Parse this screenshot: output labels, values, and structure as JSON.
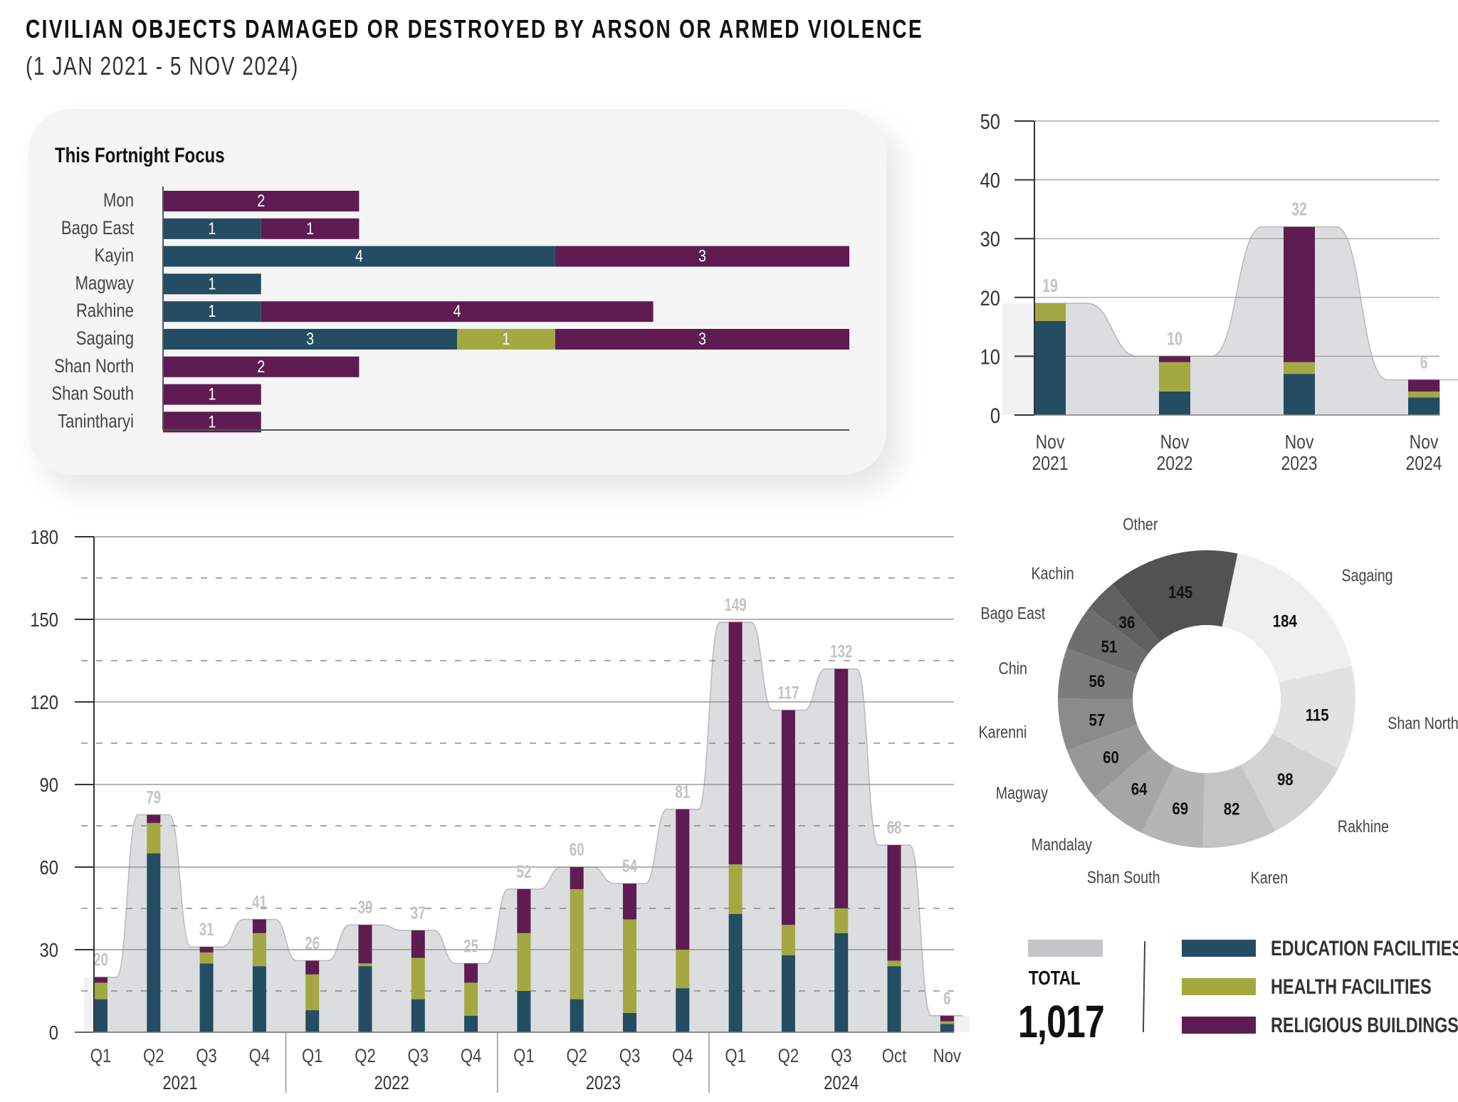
{
  "header": {
    "title": "CIVILIAN OBJECTS DAMAGED OR DESTROYED BY ARSON OR ARMED VIOLENCE",
    "subtitle": "(1 JAN 2021 - 5 NOV 2024)"
  },
  "colors": {
    "education": "#244d63",
    "health": "#a3a842",
    "religious": "#5e1c52",
    "total_band": "#dcdddf",
    "total_swatch": "#c3c5c7",
    "focus_panel_bg": "#f5f5f5"
  },
  "legend": {
    "total_label": "TOTAL",
    "total_value": "1,017",
    "items": [
      {
        "label": "EDUCATION FACILITIES",
        "key": "education"
      },
      {
        "label": "HEALTH FACILITIES",
        "key": "health"
      },
      {
        "label": "RELIGIOUS BUILDINGS",
        "key": "religious"
      }
    ]
  },
  "chart_data": [
    {
      "id": "fortnight-focus",
      "type": "bar",
      "orientation": "horizontal",
      "stacked": true,
      "title": "This Fortnight Focus",
      "categories": [
        "Mon",
        "Bago East",
        "Kayin",
        "Magway",
        "Rakhine",
        "Sagaing",
        "Shan North",
        "Shan South",
        "Tanintharyi"
      ],
      "series": [
        {
          "name": "Education Facilities",
          "key": "education",
          "values": [
            0,
            1,
            4,
            1,
            1,
            3,
            0,
            0,
            0
          ]
        },
        {
          "name": "Health Facilities",
          "key": "health",
          "values": [
            0,
            0,
            0,
            0,
            0,
            1,
            0,
            0,
            0
          ]
        },
        {
          "name": "Religious Buildings",
          "key": "religious",
          "values": [
            2,
            1,
            3,
            0,
            4,
            3,
            2,
            1,
            1
          ]
        }
      ],
      "xlim": [
        0,
        7
      ],
      "grid": false
    },
    {
      "id": "november-comparison",
      "type": "bar",
      "stacked": true,
      "title": "",
      "categories": [
        "Nov 2021",
        "Nov 2022",
        "Nov 2023",
        "Nov 2024"
      ],
      "category_lines": [
        [
          "Nov",
          "2021"
        ],
        [
          "Nov",
          "2022"
        ],
        [
          "Nov",
          "2023"
        ],
        [
          "Nov",
          "2024"
        ]
      ],
      "series": [
        {
          "name": "Education Facilities",
          "key": "education",
          "values": [
            16,
            4,
            7,
            3
          ]
        },
        {
          "name": "Health Facilities",
          "key": "health",
          "values": [
            3,
            5,
            2,
            1
          ]
        },
        {
          "name": "Religious Buildings",
          "key": "religious",
          "values": [
            0,
            1,
            23,
            2
          ]
        }
      ],
      "totals": [
        19,
        10,
        32,
        6
      ],
      "ylim": [
        0,
        50
      ],
      "yticks": [
        0,
        10,
        20,
        30,
        40,
        50
      ],
      "grid": true
    },
    {
      "id": "quarterly-trend",
      "type": "bar",
      "stacked": true,
      "title": "",
      "categories": [
        "Q1",
        "Q2",
        "Q3",
        "Q4",
        "Q1",
        "Q2",
        "Q3",
        "Q4",
        "Q1",
        "Q2",
        "Q3",
        "Q4",
        "Q1",
        "Q2",
        "Q3",
        "Oct",
        "Nov"
      ],
      "groups": [
        {
          "label": "2021",
          "count": 4
        },
        {
          "label": "2022",
          "count": 4
        },
        {
          "label": "2023",
          "count": 4
        },
        {
          "label": "2024",
          "count": 5
        }
      ],
      "series": [
        {
          "name": "Education Facilities",
          "key": "education",
          "values": [
            12,
            65,
            25,
            24,
            8,
            24,
            12,
            6,
            15,
            12,
            7,
            16,
            43,
            28,
            36,
            24,
            3
          ]
        },
        {
          "name": "Health Facilities",
          "key": "health",
          "values": [
            6,
            11,
            4,
            12,
            13,
            1,
            15,
            12,
            21,
            40,
            34,
            14,
            18,
            11,
            9,
            2,
            1
          ]
        },
        {
          "name": "Religious Buildings",
          "key": "religious",
          "values": [
            2,
            3,
            2,
            5,
            5,
            14,
            10,
            7,
            16,
            8,
            13,
            51,
            88,
            78,
            87,
            42,
            2
          ]
        }
      ],
      "totals": [
        20,
        79,
        31,
        41,
        26,
        39,
        37,
        25,
        52,
        60,
        54,
        81,
        149,
        117,
        132,
        68,
        6
      ],
      "ylim": [
        0,
        180
      ],
      "yticks": [
        0,
        30,
        60,
        90,
        120,
        150,
        180
      ],
      "minor_dashed_gridlines": [
        15,
        45,
        75,
        105,
        135,
        165
      ],
      "grid": true
    },
    {
      "id": "regional-breakdown",
      "type": "pie",
      "donut": true,
      "title": "",
      "labels": [
        "Sagaing",
        "Shan North",
        "Rakhine",
        "Karen",
        "Shan South",
        "Mandalay",
        "Magway",
        "Karenni",
        "Chin",
        "Bago East",
        "Kachin",
        "Other"
      ],
      "values": [
        184,
        115,
        98,
        82,
        69,
        64,
        60,
        57,
        56,
        51,
        36,
        145
      ],
      "slice_colors": [
        "#efefef",
        "#e2e2e2",
        "#d3d3d3",
        "#c4c4c4",
        "#b5b5b5",
        "#a6a6a6",
        "#989898",
        "#8a8a8a",
        "#7c7c7c",
        "#6e6e6e",
        "#606060",
        "#525252"
      ],
      "total": 1017
    }
  ]
}
